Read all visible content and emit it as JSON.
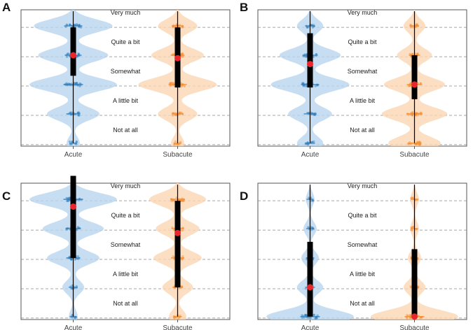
{
  "colors": {
    "acute": "#2f7ebc",
    "acute_fill": "#b9d5ee",
    "subacute": "#f28a2c",
    "subacute_fill": "#fbd6b4",
    "median": "#e8262b",
    "box": "#000000",
    "grid": "#888888",
    "frame": "#555555"
  },
  "chart_data": [
    {
      "type": "violin",
      "panel": "A",
      "categories": [
        "Acute",
        "Subacute"
      ],
      "levels": [
        "Not at all",
        "A little bit",
        "Somewhat",
        "Quite a bit",
        "Very much"
      ],
      "ylim": [
        -0.1,
        4.55
      ],
      "series": [
        {
          "name": "Acute",
          "density": [
            0.15,
            0.6,
            1.0,
            0.8,
            0.9
          ],
          "q1": 2.3,
          "q3": 3.95,
          "median": 3.0
        },
        {
          "name": "Subacute",
          "density": [
            0.15,
            0.45,
            0.9,
            0.6,
            0.45
          ],
          "q1": 1.9,
          "q3": 3.95,
          "median": 2.9
        }
      ]
    },
    {
      "type": "violin",
      "panel": "B",
      "categories": [
        "Acute",
        "Subacute"
      ],
      "levels": [
        "Not at all",
        "A little bit",
        "Somewhat",
        "Quite a bit",
        "Very much"
      ],
      "ylim": [
        -0.1,
        4.55
      ],
      "series": [
        {
          "name": "Acute",
          "density": [
            0.3,
            0.5,
            0.9,
            0.7,
            0.3
          ],
          "q1": 1.9,
          "q3": 3.75,
          "median": 2.7
        },
        {
          "name": "Subacute",
          "density": [
            0.6,
            0.75,
            0.7,
            0.4,
            0.25
          ],
          "q1": 1.5,
          "q3": 3.0,
          "median": 2.0
        }
      ]
    },
    {
      "type": "violin",
      "panel": "C",
      "categories": [
        "Acute",
        "Subacute"
      ],
      "levels": [
        "Not at all",
        "A little bit",
        "Somewhat",
        "Quite a bit",
        "Very much"
      ],
      "ylim": [
        -0.1,
        4.55
      ],
      "series": [
        {
          "name": "Acute",
          "density": [
            0.1,
            0.25,
            0.6,
            0.7,
            1.0
          ],
          "q1": 2.0,
          "q3": 4.8,
          "median": 3.75
        },
        {
          "name": "Subacute",
          "density": [
            0.2,
            0.35,
            0.55,
            0.5,
            0.65
          ],
          "q1": 1.0,
          "q3": 3.95,
          "median": 2.85
        }
      ]
    },
    {
      "type": "violin",
      "panel": "D",
      "categories": [
        "Acute",
        "Subacute"
      ],
      "levels": [
        "Not at all",
        "A little bit",
        "Somewhat",
        "Quite a bit",
        "Very much"
      ],
      "ylim": [
        -0.1,
        4.55
      ],
      "series": [
        {
          "name": "Acute",
          "density": [
            1.0,
            0.3,
            0.2,
            0.15,
            0.1
          ],
          "q1": 0.0,
          "q3": 2.55,
          "median": 1.0
        },
        {
          "name": "Subacute",
          "density": [
            1.0,
            0.25,
            0.15,
            0.1,
            0.1
          ],
          "q1": 0.0,
          "q3": 2.3,
          "median": 0.0
        }
      ]
    }
  ]
}
